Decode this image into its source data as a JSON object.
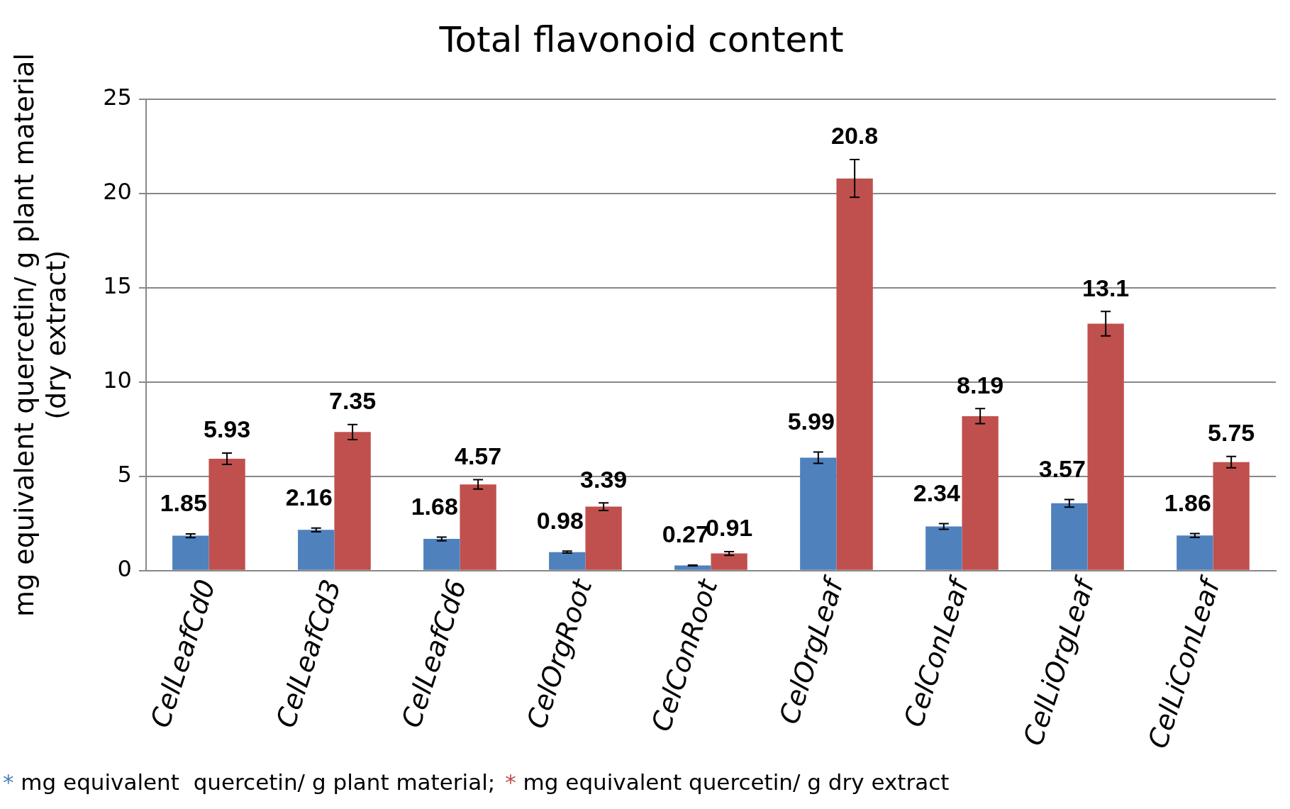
{
  "chart_data": {
    "type": "bar",
    "title": "Total flavonoid content",
    "ylabel": "mg equivalent quercetin/ g plant material\n(dry extract)",
    "categories": [
      "CelLeafCd0",
      "CelLeafCd3",
      "CelLeafCd6",
      "CelOrgRoot",
      "CelConRoot",
      "CelOrgLeaf",
      "CelConLeaf",
      "CelLiOrgLeaf",
      "CelLiConLeaf"
    ],
    "series": [
      {
        "color": "#4f81bd",
        "values": [
          1.85,
          2.16,
          1.68,
          0.98,
          0.27,
          5.99,
          2.34,
          3.57,
          1.86
        ],
        "errors": [
          0.1,
          0.1,
          0.1,
          0.05,
          0.02,
          0.3,
          0.15,
          0.2,
          0.1
        ]
      },
      {
        "color": "#c0504d",
        "values": [
          5.93,
          7.35,
          4.57,
          3.39,
          0.91,
          20.8,
          8.19,
          13.1,
          5.75
        ],
        "errors": [
          0.3,
          0.4,
          0.25,
          0.2,
          0.1,
          1.0,
          0.4,
          0.65,
          0.3
        ]
      }
    ],
    "ylim": [
      0,
      25
    ],
    "yticks": [
      0,
      5,
      10,
      15,
      20,
      25
    ],
    "grid": "y",
    "data_labels": true,
    "annotations": [
      "* mg equivalent  quercetin/ g plant material;",
      "* mg equivalent quercetin/ g dry extract"
    ]
  }
}
